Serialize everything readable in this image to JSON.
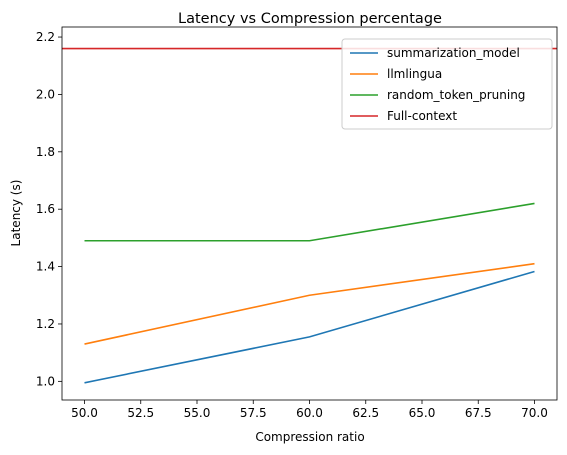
{
  "chart_data": {
    "type": "line",
    "title": "Latency vs Compression percentage",
    "xlabel": "Compression ratio",
    "ylabel": "Latency (s)",
    "x": [
      50,
      60,
      70
    ],
    "xlim": [
      49,
      71
    ],
    "ylim": [
      0.935,
      2.235
    ],
    "xticks": [
      "50.0",
      "52.5",
      "55.0",
      "57.5",
      "60.0",
      "62.5",
      "65.0",
      "67.5",
      "70.0"
    ],
    "xtick_values": [
      50,
      52.5,
      55,
      57.5,
      60,
      62.5,
      65,
      67.5,
      70
    ],
    "yticks": [
      "1.0",
      "1.2",
      "1.4",
      "1.6",
      "1.8",
      "2.0",
      "2.2"
    ],
    "ytick_values": [
      1.0,
      1.2,
      1.4,
      1.6,
      1.8,
      2.0,
      2.2
    ],
    "grid": false,
    "legend_position": "top-right",
    "series": [
      {
        "name": "summarization_model",
        "values": [
          0.995,
          1.155,
          1.383
        ],
        "color": "#1f77b4"
      },
      {
        "name": "llmlingua",
        "values": [
          1.13,
          1.3,
          1.41
        ],
        "color": "#ff7f0e"
      },
      {
        "name": "random_token_pruning",
        "values": [
          1.49,
          1.49,
          1.62
        ],
        "color": "#2ca02c"
      }
    ],
    "reference_lines": [
      {
        "name": "Full-context",
        "value": 2.16,
        "color": "#d62728"
      }
    ]
  }
}
